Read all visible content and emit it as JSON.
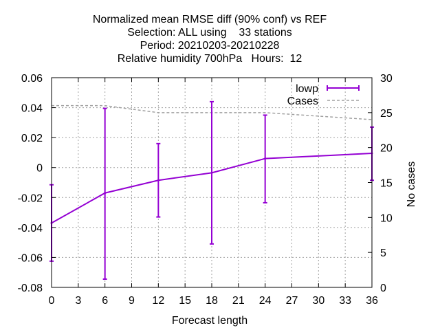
{
  "chart_data": {
    "type": "line",
    "title_lines": [
      "Normalized mean RMSE diff (90% conf) vs REF",
      "Selection: ALL using    33 stations",
      "Period: 20210203-20210228",
      "Relative humidity 700hPa   Hours:  12"
    ],
    "xlabel": "Forecast length",
    "ylabel_right": "No cases",
    "xlim": [
      0,
      36
    ],
    "ylim": [
      -0.08,
      0.06
    ],
    "y2lim": [
      0,
      30
    ],
    "x_ticks": [
      "0",
      "3",
      "6",
      "9",
      "12",
      "15",
      "18",
      "21",
      "24",
      "27",
      "30",
      "33",
      "36"
    ],
    "y_ticks": [
      "-0.08",
      "-0.06",
      "-0.04",
      "-0.02",
      "0",
      "0.02",
      "0.04",
      "0.06"
    ],
    "y2_ticks": [
      "0",
      "5",
      "10",
      "15",
      "20",
      "25",
      "30"
    ],
    "grid": true,
    "legend_position": "top-right",
    "series": [
      {
        "name": "lowp",
        "color": "#9400d3",
        "style": "line-errorbars",
        "x": [
          0,
          6,
          12,
          18,
          24,
          36
        ],
        "y": [
          -0.037,
          -0.017,
          -0.0085,
          -0.0035,
          0.006,
          0.0095
        ],
        "err_low": [
          -0.0625,
          -0.0745,
          -0.033,
          -0.051,
          -0.0235,
          -0.0085
        ],
        "err_high": [
          -0.0115,
          0.0395,
          0.016,
          0.044,
          0.035,
          0.027
        ]
      },
      {
        "name": "Cases",
        "color": "#a0a0a0",
        "style": "dashed",
        "axis": "right",
        "x": [
          0,
          6,
          12,
          18,
          24,
          36
        ],
        "y": [
          26,
          26,
          25,
          25,
          25,
          24
        ]
      }
    ]
  }
}
